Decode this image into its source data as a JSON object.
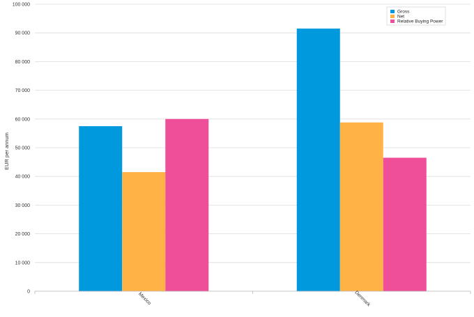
{
  "chart_data": {
    "type": "bar",
    "categories": [
      "Mexico",
      "Denmark"
    ],
    "series": [
      {
        "name": "Gross",
        "color": "#0099dd",
        "values": [
          57500,
          91500
        ]
      },
      {
        "name": "Net",
        "color": "#ffb347",
        "values": [
          41500,
          58800
        ]
      },
      {
        "name": "Relative Buying Power",
        "color": "#ef4f99",
        "values": [
          60000,
          46500
        ]
      }
    ],
    "ylabel": "EUR per annum",
    "xlabel": "",
    "ylim": [
      0,
      100000
    ],
    "yticks": [
      0,
      10000,
      20000,
      30000,
      40000,
      50000,
      60000,
      70000,
      80000,
      90000,
      100000
    ],
    "ytick_labels": [
      "0",
      "10 000",
      "20 000",
      "30 000",
      "40 000",
      "50 000",
      "60 000",
      "70 000",
      "80 000",
      "90 000",
      "100 000"
    ],
    "grid": true,
    "legend_position": "top-right"
  }
}
